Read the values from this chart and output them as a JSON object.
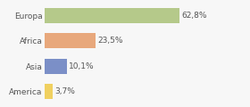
{
  "categories": [
    "Europa",
    "Africa",
    "Asia",
    "America"
  ],
  "values": [
    62.8,
    23.5,
    10.1,
    3.7
  ],
  "labels": [
    "62,8%",
    "23,5%",
    "10,1%",
    "3,7%"
  ],
  "bar_colors": [
    "#b5c98a",
    "#e8a87c",
    "#7b8fc7",
    "#f0d060"
  ],
  "background_color": "#f7f7f7",
  "xlim": [
    0,
    82
  ],
  "bar_height": 0.6,
  "label_fontsize": 6.5,
  "tick_fontsize": 6.5,
  "figsize": [
    2.8,
    1.2
  ],
  "dpi": 100
}
